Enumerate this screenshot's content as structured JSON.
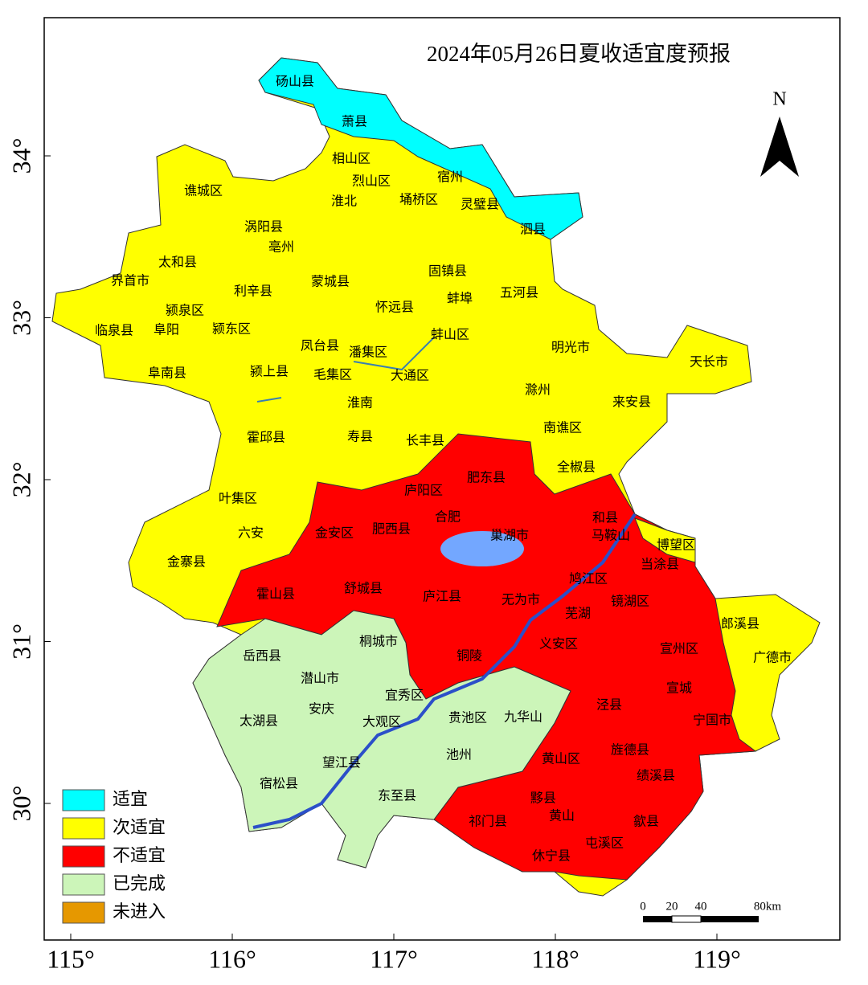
{
  "title": "2024年05月26日夏收适宜度预报",
  "north": "N",
  "legend": [
    {
      "label": "适宜",
      "color": "#00ffff"
    },
    {
      "label": "次适宜",
      "color": "#ffff00"
    },
    {
      "label": "不适宜",
      "color": "#ff0000"
    },
    {
      "label": "已完成",
      "color": "#ccf5b9"
    },
    {
      "label": "未进入",
      "color": "#e69800"
    }
  ],
  "scale_bar": [
    "0",
    "20",
    "40",
    "80km"
  ],
  "x_ticks": [
    {
      "value": 115,
      "label": "115°"
    },
    {
      "value": 116,
      "label": "116°"
    },
    {
      "value": 117,
      "label": "117°"
    },
    {
      "value": 118,
      "label": "118°"
    },
    {
      "value": 119,
      "label": "119°"
    }
  ],
  "y_ticks": [
    {
      "value": 30,
      "label": "30°"
    },
    {
      "value": 31,
      "label": "31°"
    },
    {
      "value": 32,
      "label": "32°"
    },
    {
      "value": 33,
      "label": "33°"
    },
    {
      "value": 34,
      "label": "34°"
    }
  ],
  "places": [
    "砀山县",
    "萧县",
    "相山区",
    "烈山区",
    "淮北",
    "宿州",
    "埇桥区",
    "灵璧县",
    "泗县",
    "谯城区",
    "涡阳县",
    "亳州",
    "太和县",
    "界首市",
    "利辛县",
    "蒙城县",
    "固镇县",
    "怀远县",
    "蚌埠",
    "五河县",
    "颍泉区",
    "临泉县",
    "阜阳",
    "颍东区",
    "凤台县",
    "潘集区",
    "蚌山区",
    "明光市",
    "天长市",
    "阜南县",
    "颍上县",
    "毛集区",
    "大通区",
    "淮南",
    "滁州",
    "来安县",
    "霍邱县",
    "寿县",
    "长丰县",
    "南谯区",
    "全椒县",
    "肥东县",
    "庐阳区",
    "叶集区",
    "合肥",
    "肥西县",
    "和县",
    "巢湖市",
    "马鞍山",
    "六安",
    "金安区",
    "博望区",
    "金寨县",
    "当涂县",
    "鸠江区",
    "霍山县",
    "舒城县",
    "庐江县",
    "无为市",
    "芜湖",
    "镜湖区",
    "郎溪县",
    "义安区",
    "宣州区",
    "岳西县",
    "桐城市",
    "广德市",
    "铜陵",
    "潜山市",
    "宣城",
    "宜秀区",
    "安庆",
    "泾县",
    "太湖县",
    "大观区",
    "贵池区",
    "九华山",
    "宁国市",
    "黄山区",
    "旌德县",
    "望江县",
    "池州",
    "绩溪县",
    "宿松县",
    "东至县",
    "黟县",
    "黄山",
    "歙县",
    "祁门县",
    "屯溪区",
    "休宁县"
  ]
}
